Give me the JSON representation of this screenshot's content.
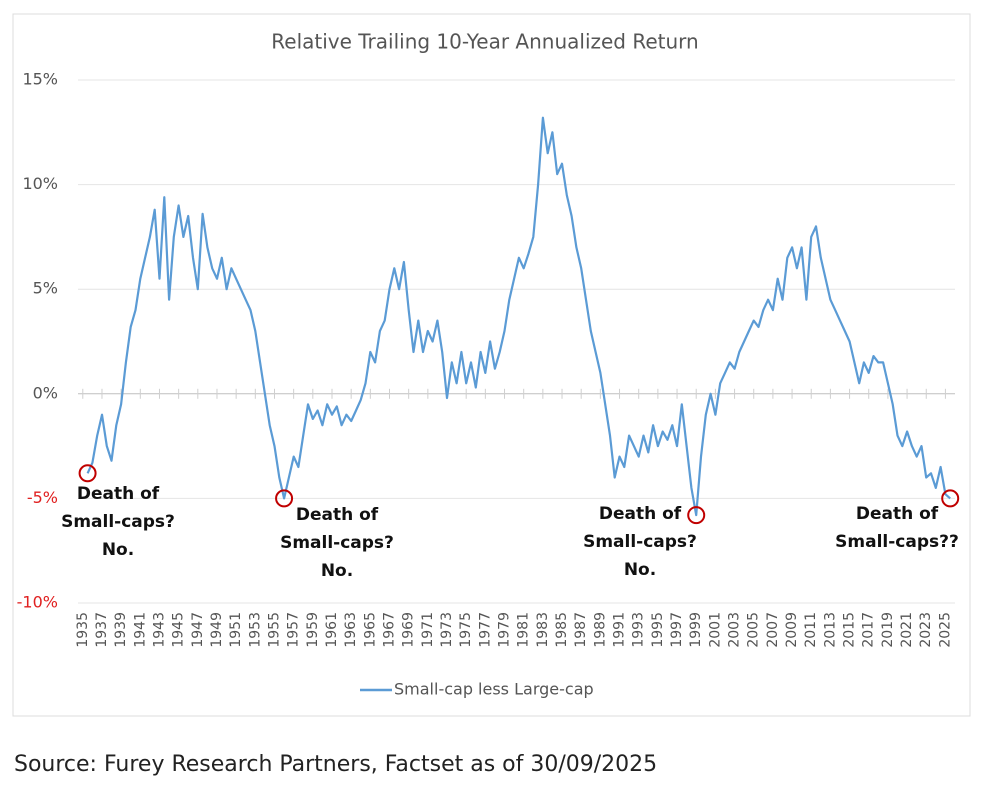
{
  "chart_data": {
    "type": "line",
    "title": "Relative Trailing 10-Year Annualized Return",
    "x": [
      1935.5,
      1936,
      1936.5,
      1937,
      1937.5,
      1938,
      1938.5,
      1939,
      1939.5,
      1940,
      1940.5,
      1941,
      1941.5,
      1942,
      1942.5,
      1943,
      1943.5,
      1944,
      1944.5,
      1945,
      1945.5,
      1946,
      1946.5,
      1947,
      1947.5,
      1948,
      1948.5,
      1949,
      1949.5,
      1950,
      1950.5,
      1951,
      1951.5,
      1952,
      1952.5,
      1953,
      1953.5,
      1954,
      1954.5,
      1955,
      1955.5,
      1956,
      1956.5,
      1957,
      1957.5,
      1958,
      1958.5,
      1959,
      1959.5,
      1960,
      1960.5,
      1961,
      1961.5,
      1962,
      1962.5,
      1963,
      1963.5,
      1964,
      1964.5,
      1965,
      1965.5,
      1966,
      1966.5,
      1967,
      1967.5,
      1968,
      1968.5,
      1969,
      1969.5,
      1970,
      1970.5,
      1971,
      1971.5,
      1972,
      1972.5,
      1973,
      1973.5,
      1974,
      1974.5,
      1975,
      1975.5,
      1976,
      1976.5,
      1977,
      1977.5,
      1978,
      1978.5,
      1979,
      1979.5,
      1980,
      1980.5,
      1981,
      1981.5,
      1982,
      1982.5,
      1983,
      1983.5,
      1984,
      1984.5,
      1985,
      1985.5,
      1986,
      1986.5,
      1987,
      1987.5,
      1988,
      1988.5,
      1989,
      1989.5,
      1990,
      1990.5,
      1991,
      1991.5,
      1992,
      1992.5,
      1993,
      1993.5,
      1994,
      1994.5,
      1995,
      1995.5,
      1996,
      1996.5,
      1997,
      1997.5,
      1998,
      1998.5,
      1999,
      1999.5,
      2000,
      2000.5,
      2001,
      2001.5,
      2002,
      2002.5,
      2003,
      2003.5,
      2004,
      2004.5,
      2005,
      2005.5,
      2006,
      2006.5,
      2007,
      2007.5,
      2008,
      2008.5,
      2009,
      2009.5,
      2010,
      2010.5,
      2011,
      2011.5,
      2012,
      2012.5,
      2013,
      2013.5,
      2014,
      2014.5,
      2015,
      2015.5,
      2016,
      2016.5,
      2017,
      2017.5,
      2018,
      2018.5,
      2019,
      2019.5,
      2020,
      2020.5,
      2021,
      2021.5,
      2022,
      2022.5,
      2023,
      2023.5,
      2024,
      2024.5,
      2025,
      2025.5
    ],
    "series": [
      {
        "name": "Small-cap less Large-cap",
        "color": "#5b9bd5",
        "values": [
          -3.8,
          -3.3,
          -2.0,
          -1.0,
          -2.5,
          -3.2,
          -1.5,
          -0.5,
          1.5,
          3.2,
          4.0,
          5.5,
          6.5,
          7.5,
          8.8,
          5.5,
          9.4,
          4.5,
          7.5,
          9.0,
          7.5,
          8.5,
          6.5,
          5.0,
          8.6,
          7.0,
          6.0,
          5.5,
          6.5,
          5.0,
          6.0,
          5.5,
          5.0,
          4.5,
          4.0,
          3.0,
          1.5,
          0,
          -1.5,
          -2.5,
          -4.0,
          -5.0,
          -4.0,
          -3.0,
          -3.5,
          -2.0,
          -0.5,
          -1.2,
          -0.8,
          -1.5,
          -0.5,
          -1.0,
          -0.6,
          -1.5,
          -1.0,
          -1.3,
          -0.8,
          -0.3,
          0.5,
          2.0,
          1.5,
          3.0,
          3.5,
          5.0,
          6.0,
          5.0,
          6.3,
          4.0,
          2.0,
          3.5,
          2.0,
          3.0,
          2.5,
          3.5,
          2.0,
          -0.2,
          1.5,
          0.5,
          2.0,
          0.5,
          1.5,
          0.3,
          2.0,
          1.0,
          2.5,
          1.2,
          2.0,
          3.0,
          4.5,
          5.5,
          6.5,
          6.0,
          6.7,
          7.5,
          10.0,
          13.2,
          11.5,
          12.5,
          10.5,
          11.0,
          9.5,
          8.5,
          7.0,
          6.0,
          4.5,
          3.0,
          2.0,
          1.0,
          -0.5,
          -2.0,
          -4.0,
          -3.0,
          -3.5,
          -2.0,
          -2.5,
          -3.0,
          -2.0,
          -2.8,
          -1.5,
          -2.5,
          -1.8,
          -2.2,
          -1.5,
          -2.5,
          -0.5,
          -2.5,
          -4.5,
          -5.8,
          -3.0,
          -1.0,
          0.0,
          -1.0,
          0.5,
          1.0,
          1.5,
          1.2,
          2.0,
          2.5,
          3.0,
          3.5,
          3.2,
          4.0,
          4.5,
          4.0,
          5.5,
          4.5,
          6.5,
          7.0,
          6.0,
          7.0,
          4.5,
          7.5,
          8.0,
          6.5,
          5.5,
          4.5,
          4.0,
          3.5,
          3.0,
          2.5,
          1.5,
          0.5,
          1.5,
          1.0,
          1.8,
          1.5,
          1.5,
          0.5,
          -0.5,
          -2.0,
          -2.5,
          -1.8,
          -2.5,
          -3.0,
          -2.5,
          -4.0,
          -3.8,
          -4.5,
          -3.5,
          -4.8,
          -5.0
        ]
      }
    ],
    "xlim": [
      1934.5,
      2026
    ],
    "xticks": [
      1935,
      1937,
      1939,
      1941,
      1943,
      1945,
      1947,
      1949,
      1951,
      1953,
      1955,
      1957,
      1959,
      1961,
      1963,
      1965,
      1967,
      1969,
      1971,
      1973,
      1975,
      1977,
      1979,
      1981,
      1983,
      1985,
      1987,
      1989,
      1991,
      1993,
      1995,
      1997,
      1999,
      2001,
      2003,
      2005,
      2007,
      2009,
      2011,
      2013,
      2015,
      2017,
      2019,
      2021,
      2023,
      2025
    ],
    "ylim": [
      -10,
      15
    ],
    "yticks": [
      {
        "value": -10,
        "label": "-10%"
      },
      {
        "value": -5,
        "label": "-5%"
      },
      {
        "value": 0,
        "label": "0%"
      },
      {
        "value": 5,
        "label": "5%"
      },
      {
        "value": 10,
        "label": "10%"
      },
      {
        "value": 15,
        "label": "15%"
      }
    ],
    "grid": true,
    "negative_tick_color": "#e02020",
    "legend": "bottom",
    "annotations": [
      {
        "lines": [
          "Death of",
          "Small-caps?",
          "No."
        ]
      },
      {
        "lines": [
          "Death of",
          "Small-caps?",
          "No."
        ]
      },
      {
        "lines": [
          "Death of",
          "Small-caps?",
          "No."
        ]
      },
      {
        "lines": [
          "Death of",
          "Small-caps??"
        ]
      }
    ],
    "source": "Source: Furey Research Partners, Factset as of 30/09/2025"
  }
}
